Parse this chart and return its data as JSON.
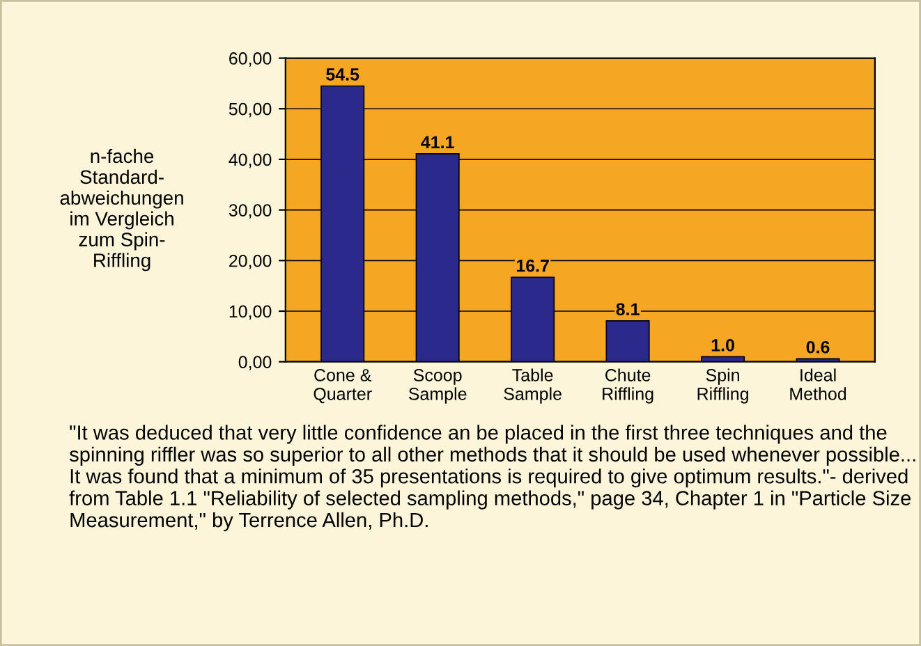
{
  "chart_data": {
    "type": "bar",
    "ylabel": "n-fache\nStandard-\nabweichungen\nim Vergleich\nzum Spin-\nRiffling",
    "categories": [
      "Cone &\nQuarter",
      "Scoop\nSample",
      "Table\nSample",
      "Chute\nRiffling",
      "Spin\nRiffling",
      "Ideal\nMethod"
    ],
    "values": [
      54.5,
      41.1,
      16.7,
      8.1,
      1.0,
      0.6
    ],
    "color": "#2b2a8c",
    "value_labels": [
      "54.5",
      "41.1",
      "16.7",
      "8.1",
      "1.0",
      "0.6"
    ],
    "ylim": [
      0,
      60
    ],
    "yticks": [
      {
        "value": 0,
        "label": "0,00"
      },
      {
        "value": 10,
        "label": "10,00"
      },
      {
        "value": 20,
        "label": "20,00"
      },
      {
        "value": 30,
        "label": "30,00"
      },
      {
        "value": 40,
        "label": "40,00"
      },
      {
        "value": 50,
        "label": "50,00"
      },
      {
        "value": 60,
        "label": "60,00"
      }
    ],
    "grid": "y",
    "annotations": [
      "\"It was deduced that very little confidence an be placed in the first three techniques and the spinning riffler was so superior to all other methods that it should be used whenever possible... It was found that a minimum of 35 presentations is required to give optimum results.\"- derived from Table 1.1 \"Reliability of selected sampling methods,\" page 34, Chapter 1 in \"Particle Size Measurement,\" by Terrence Allen, Ph.D."
    ]
  }
}
